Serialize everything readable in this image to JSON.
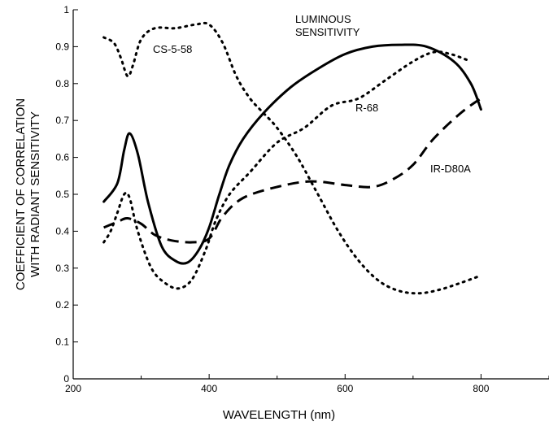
{
  "chart_data": {
    "type": "line",
    "xlabel": "WAVELENGTH (nm)",
    "ylabel": "COEFFICIENT OF CORRELATION WITH RADIANT SENSITIVITY",
    "ylabel_lines": [
      "COEFFICIENT OF CORRELATION",
      "WITH RADIANT SENSITIVITY"
    ],
    "xlim": [
      200,
      900
    ],
    "ylim": [
      0,
      1
    ],
    "x_ticks": [
      200,
      400,
      600,
      800
    ],
    "y_ticks": [
      0,
      0.1,
      0.2,
      0.3,
      0.4,
      0.5,
      0.6,
      0.7,
      0.8,
      0.9,
      1
    ],
    "y_tick_labels": [
      "0",
      "0.1",
      "0.2",
      "0.3",
      "0.4",
      "0.5",
      "0.6",
      "0.7",
      "0.8",
      "0.9",
      "1"
    ],
    "grid": false,
    "series": [
      {
        "name": "LUMINOUS SENSITIVITY",
        "label_lines": [
          "LUMINOUS",
          "SENSITIVITY"
        ],
        "style": "solid",
        "points": [
          [
            245,
            0.48
          ],
          [
            265,
            0.53
          ],
          [
            275,
            0.62
          ],
          [
            283,
            0.665
          ],
          [
            295,
            0.61
          ],
          [
            310,
            0.48
          ],
          [
            330,
            0.36
          ],
          [
            350,
            0.32
          ],
          [
            368,
            0.315
          ],
          [
            385,
            0.35
          ],
          [
            400,
            0.41
          ],
          [
            415,
            0.5
          ],
          [
            430,
            0.58
          ],
          [
            450,
            0.65
          ],
          [
            480,
            0.72
          ],
          [
            520,
            0.79
          ],
          [
            560,
            0.84
          ],
          [
            600,
            0.88
          ],
          [
            640,
            0.9
          ],
          [
            680,
            0.905
          ],
          [
            720,
            0.9
          ],
          [
            760,
            0.86
          ],
          [
            785,
            0.8
          ],
          [
            800,
            0.73
          ]
        ]
      },
      {
        "name": "CS-5-58",
        "style": "dotted",
        "points": [
          [
            245,
            0.925
          ],
          [
            260,
            0.91
          ],
          [
            270,
            0.87
          ],
          [
            280,
            0.82
          ],
          [
            288,
            0.85
          ],
          [
            300,
            0.92
          ],
          [
            320,
            0.95
          ],
          [
            350,
            0.95
          ],
          [
            380,
            0.96
          ],
          [
            400,
            0.96
          ],
          [
            420,
            0.91
          ],
          [
            440,
            0.82
          ],
          [
            460,
            0.76
          ],
          [
            480,
            0.72
          ],
          [
            500,
            0.68
          ],
          [
            530,
            0.6
          ],
          [
            560,
            0.5
          ],
          [
            590,
            0.4
          ],
          [
            620,
            0.32
          ],
          [
            650,
            0.265
          ],
          [
            680,
            0.238
          ],
          [
            710,
            0.232
          ],
          [
            740,
            0.242
          ],
          [
            770,
            0.26
          ],
          [
            800,
            0.28
          ]
        ]
      },
      {
        "name": "R-68",
        "style": "dotted",
        "points": [
          [
            245,
            0.37
          ],
          [
            255,
            0.4
          ],
          [
            265,
            0.45
          ],
          [
            275,
            0.5
          ],
          [
            283,
            0.49
          ],
          [
            295,
            0.4
          ],
          [
            315,
            0.3
          ],
          [
            335,
            0.26
          ],
          [
            355,
            0.245
          ],
          [
            375,
            0.27
          ],
          [
            395,
            0.35
          ],
          [
            410,
            0.43
          ],
          [
            430,
            0.5
          ],
          [
            460,
            0.56
          ],
          [
            500,
            0.64
          ],
          [
            540,
            0.68
          ],
          [
            580,
            0.74
          ],
          [
            620,
            0.76
          ],
          [
            660,
            0.81
          ],
          [
            700,
            0.86
          ],
          [
            730,
            0.885
          ],
          [
            755,
            0.88
          ],
          [
            785,
            0.86
          ]
        ]
      },
      {
        "name": "IR-D80A",
        "style": "dashed",
        "points": [
          [
            245,
            0.41
          ],
          [
            265,
            0.425
          ],
          [
            280,
            0.435
          ],
          [
            300,
            0.42
          ],
          [
            320,
            0.39
          ],
          [
            345,
            0.375
          ],
          [
            375,
            0.37
          ],
          [
            400,
            0.38
          ],
          [
            420,
            0.44
          ],
          [
            450,
            0.49
          ],
          [
            500,
            0.52
          ],
          [
            550,
            0.535
          ],
          [
            600,
            0.525
          ],
          [
            640,
            0.52
          ],
          [
            670,
            0.54
          ],
          [
            700,
            0.58
          ],
          [
            730,
            0.65
          ],
          [
            770,
            0.72
          ],
          [
            800,
            0.76
          ]
        ]
      }
    ]
  }
}
